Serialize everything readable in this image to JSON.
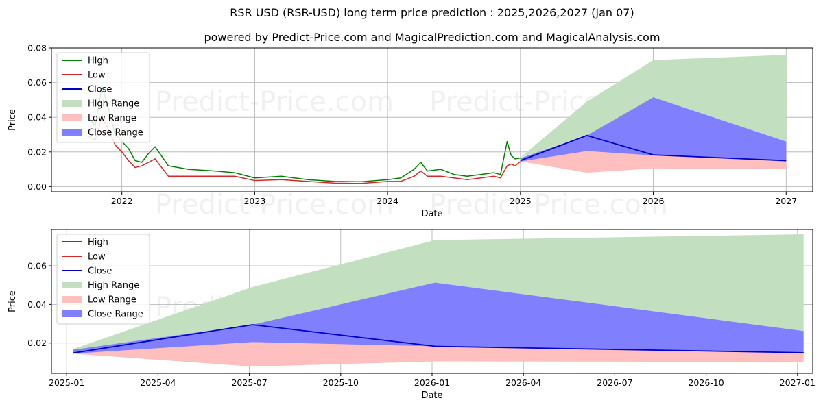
{
  "title": "RSR USD (RSR-USD) long term price prediction : 2025,2026,2027 (Jan 07)",
  "subtitle": "powered by Predict-Price.com and MagicalPrediction.com and MagicalAnalysis.com",
  "watermark": "Predict-Price.com",
  "colors": {
    "high": "#008000",
    "low": "#d62728",
    "close": "#0000cc",
    "high_range": "#c2e0c0",
    "low_range": "#ffbfbf",
    "close_range": "#8080ff"
  },
  "chart_data": [
    {
      "type": "line",
      "title": "Full history and forecast",
      "xlabel": "Date",
      "ylabel": "Price",
      "xlim": [
        2021.47,
        2027.2
      ],
      "ylim": [
        -0.003,
        0.08
      ],
      "xticks": [
        {
          "v": 2022,
          "label": "2022"
        },
        {
          "v": 2023,
          "label": "2023"
        },
        {
          "v": 2024,
          "label": "2024"
        },
        {
          "v": 2025,
          "label": "2025"
        },
        {
          "v": 2026,
          "label": "2026"
        },
        {
          "v": 2027,
          "label": "2027"
        }
      ],
      "yticks": [
        {
          "v": 0.0,
          "label": "0.00"
        },
        {
          "v": 0.02,
          "label": "0.02"
        },
        {
          "v": 0.04,
          "label": "0.04"
        },
        {
          "v": 0.06,
          "label": "0.06"
        },
        {
          "v": 0.08,
          "label": "0.08"
        }
      ],
      "grid": true,
      "legend": {
        "position": "top-left",
        "entries": [
          "High",
          "Low",
          "Close",
          "High Range",
          "Low Range",
          "Close Range"
        ]
      },
      "series": [
        {
          "name": "High",
          "x": [
            2021.75,
            2021.8,
            2021.85,
            2021.9,
            2021.95,
            2022.0,
            2022.05,
            2022.1,
            2022.15,
            2022.2,
            2022.25,
            2022.35,
            2022.5,
            2022.7,
            2022.85,
            2023.0,
            2023.2,
            2023.4,
            2023.6,
            2023.8,
            2024.0,
            2024.1,
            2024.2,
            2024.25,
            2024.3,
            2024.4,
            2024.5,
            2024.6,
            2024.7,
            2024.8,
            2024.85,
            2024.9,
            2024.93,
            2024.96,
            2025.0
          ],
          "y": [
            0.04,
            0.035,
            0.058,
            0.045,
            0.03,
            0.026,
            0.022,
            0.015,
            0.014,
            0.019,
            0.023,
            0.012,
            0.01,
            0.009,
            0.008,
            0.005,
            0.006,
            0.004,
            0.003,
            0.0028,
            0.004,
            0.005,
            0.01,
            0.014,
            0.009,
            0.01,
            0.007,
            0.006,
            0.007,
            0.008,
            0.007,
            0.026,
            0.018,
            0.016,
            0.0165
          ]
        },
        {
          "name": "Low",
          "x": [
            2021.75,
            2021.8,
            2021.85,
            2021.9,
            2021.95,
            2022.0,
            2022.05,
            2022.1,
            2022.15,
            2022.2,
            2022.25,
            2022.35,
            2022.5,
            2022.7,
            2022.85,
            2023.0,
            2023.2,
            2023.4,
            2023.6,
            2023.8,
            2024.0,
            2024.1,
            2024.2,
            2024.25,
            2024.3,
            2024.4,
            2024.5,
            2024.6,
            2024.7,
            2024.8,
            2024.85,
            2024.9,
            2024.93,
            2024.96,
            2025.0
          ],
          "y": [
            0.029,
            0.027,
            0.04,
            0.033,
            0.024,
            0.02,
            0.015,
            0.011,
            0.012,
            0.014,
            0.016,
            0.006,
            0.006,
            0.006,
            0.006,
            0.0035,
            0.004,
            0.003,
            0.002,
            0.0018,
            0.003,
            0.003,
            0.006,
            0.009,
            0.006,
            0.006,
            0.005,
            0.004,
            0.005,
            0.006,
            0.005,
            0.012,
            0.013,
            0.012,
            0.0145
          ]
        },
        {
          "name": "Close",
          "x": [
            2025.0,
            2025.5,
            2026.0,
            2027.0
          ],
          "y": [
            0.015,
            0.0295,
            0.0183,
            0.015
          ]
        }
      ],
      "ranges": [
        {
          "name": "High Range",
          "x": [
            2025.0,
            2025.5,
            2026.0,
            2027.0
          ],
          "upper": [
            0.0168,
            0.049,
            0.073,
            0.076
          ],
          "lower": [
            0.0168,
            0.0295,
            0.0515,
            0.026
          ]
        },
        {
          "name": "Low Range",
          "x": [
            2025.0,
            2025.5,
            2026.0,
            2027.0
          ],
          "upper": [
            0.015,
            0.021,
            0.0183,
            0.015
          ],
          "lower": [
            0.0145,
            0.008,
            0.0105,
            0.01
          ]
        },
        {
          "name": "Close Range",
          "x": [
            2025.0,
            2025.5,
            2026.0,
            2027.0
          ],
          "upper": [
            0.0165,
            0.0295,
            0.0515,
            0.026
          ],
          "lower": [
            0.0145,
            0.0205,
            0.018,
            0.0145
          ]
        }
      ]
    },
    {
      "type": "line",
      "title": "Forecast detail",
      "xlabel": "Date",
      "ylabel": "Price",
      "xlim": [
        -0.5,
        24.5
      ],
      "ylim": [
        0.0043,
        0.0788
      ],
      "xticks": [
        {
          "v": 0,
          "label": "2025-01"
        },
        {
          "v": 3,
          "label": "2025-04"
        },
        {
          "v": 6,
          "label": "2025-07"
        },
        {
          "v": 9,
          "label": "2025-10"
        },
        {
          "v": 12,
          "label": "2026-01"
        },
        {
          "v": 15,
          "label": "2026-04"
        },
        {
          "v": 18,
          "label": "2026-07"
        },
        {
          "v": 21,
          "label": "2026-10"
        },
        {
          "v": 24,
          "label": "2027-01"
        }
      ],
      "yticks": [
        {
          "v": 0.02,
          "label": "0.02"
        },
        {
          "v": 0.04,
          "label": "0.04"
        },
        {
          "v": 0.06,
          "label": "0.06"
        }
      ],
      "grid": true,
      "legend": {
        "position": "top-left",
        "entries": [
          "High",
          "Low",
          "Close",
          "High Range",
          "Low Range",
          "Close Range"
        ]
      },
      "series": [
        {
          "name": "Close",
          "x": [
            0.2,
            6.1,
            12.1,
            24.2
          ],
          "y": [
            0.0148,
            0.0295,
            0.0183,
            0.015
          ]
        }
      ],
      "ranges": [
        {
          "name": "High Range",
          "x": [
            0.2,
            6.1,
            12.1,
            24.2
          ],
          "upper": [
            0.0168,
            0.049,
            0.0733,
            0.0763
          ],
          "lower": [
            0.0165,
            0.0295,
            0.0513,
            0.0262
          ]
        },
        {
          "name": "Low Range",
          "x": [
            0.2,
            6.1,
            12.1,
            24.2
          ],
          "upper": [
            0.015,
            0.021,
            0.0183,
            0.015
          ],
          "lower": [
            0.0145,
            0.0078,
            0.0105,
            0.0102
          ]
        },
        {
          "name": "Close Range",
          "x": [
            0.2,
            6.1,
            12.1,
            24.2
          ],
          "upper": [
            0.0165,
            0.0295,
            0.0513,
            0.0262
          ],
          "lower": [
            0.0145,
            0.0205,
            0.0183,
            0.0148
          ]
        }
      ]
    }
  ]
}
